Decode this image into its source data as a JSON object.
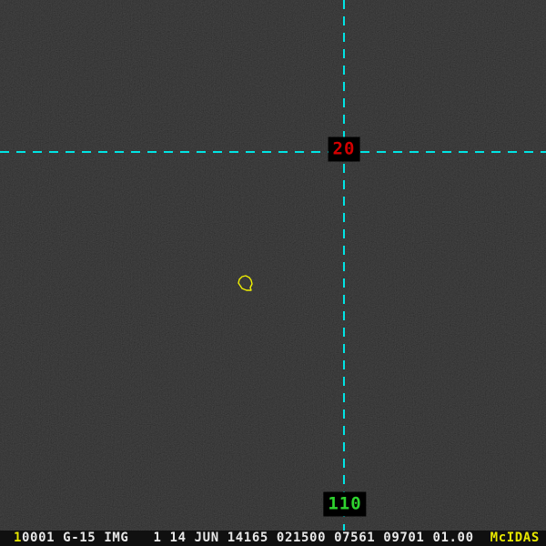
{
  "app_brand": "McIDAS",
  "colors": {
    "crosshair_cyan": "#00e4e4",
    "intersection_label_red": "#d40000",
    "bottom_label_green": "#2fd42f",
    "annotation_yellow": "#f0f000",
    "status_text_white": "#e8e8e8",
    "status_text_yellow": "#e8e800",
    "background": "#040404"
  },
  "crosshair": {
    "intersection_label": "20",
    "bottom_label": "110"
  },
  "annotation": {
    "label": "yellow-contour",
    "color": "#f0f000",
    "points": [
      [
        270,
        303
      ],
      [
        274,
        305
      ],
      [
        276,
        308
      ],
      [
        277,
        312
      ],
      [
        275,
        316
      ],
      [
        276,
        319
      ],
      [
        271,
        319
      ],
      [
        266,
        317
      ],
      [
        262,
        311
      ],
      [
        263,
        307
      ],
      [
        266,
        304
      ]
    ]
  },
  "status_bar": {
    "frame_number": "1",
    "image_info": "0001 G-15 IMG   1 14 JUN 14165 021500 07561 09701 01.00  ",
    "brand": "McIDAS"
  }
}
